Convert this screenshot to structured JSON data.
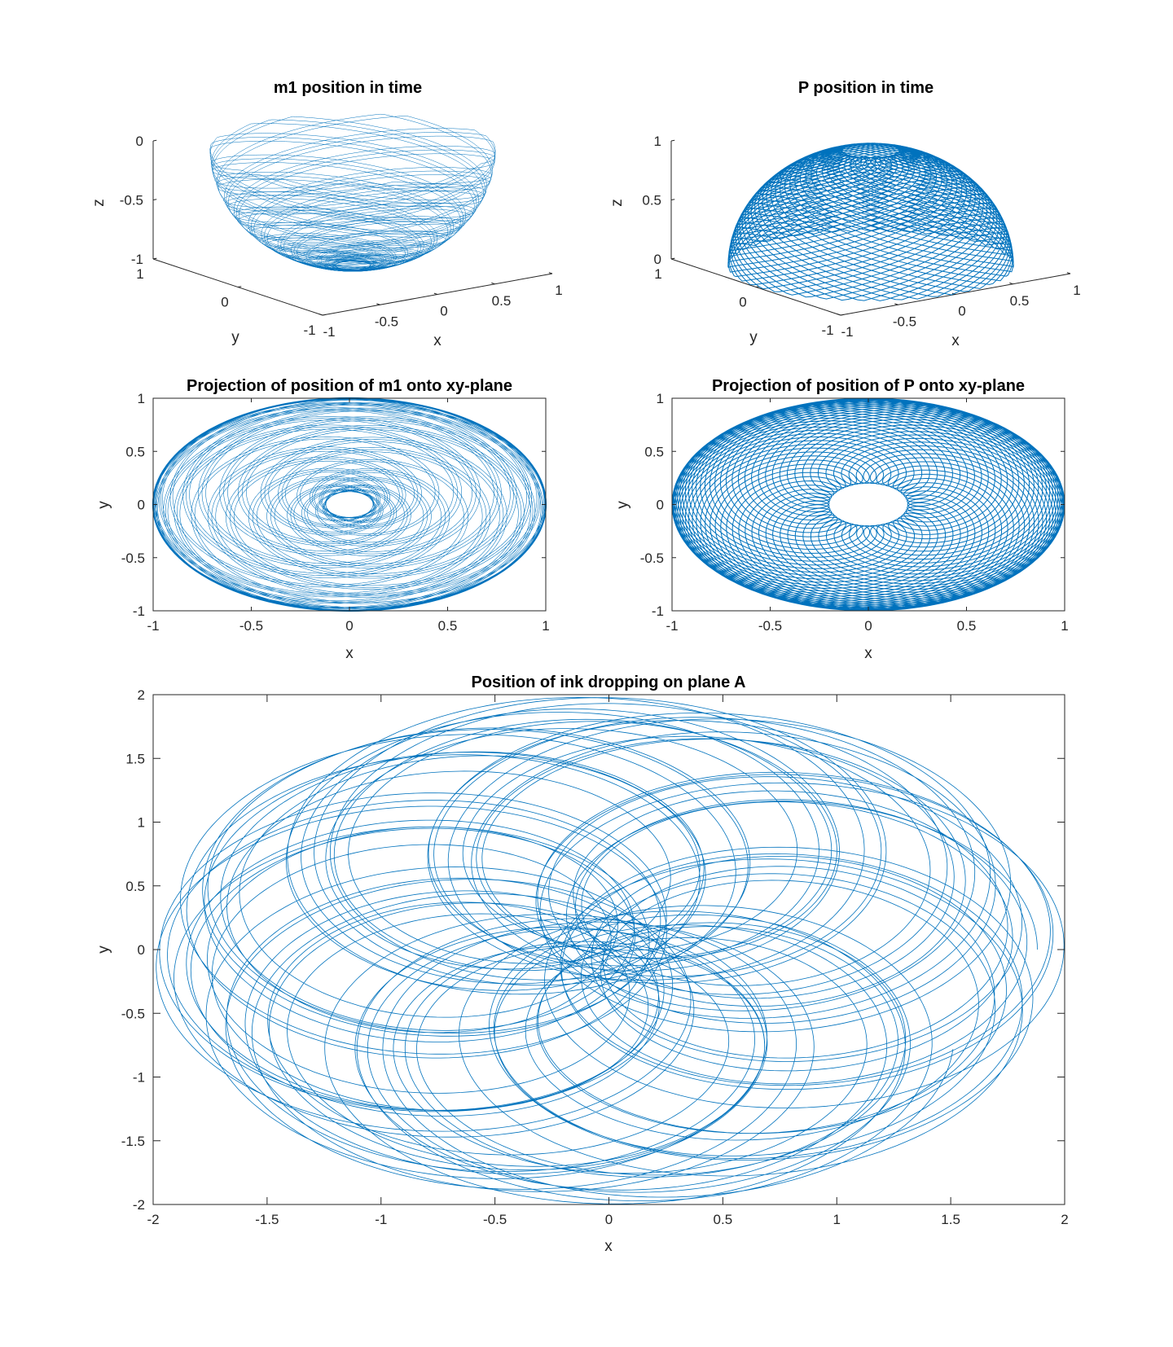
{
  "figure": {
    "line_color": "#0072BD",
    "axis_color": "#262626",
    "background": "#ffffff"
  },
  "chart_data": [
    {
      "id": "m1-3d",
      "type": "line3d",
      "title": "m1 position in time",
      "xlabel": "x",
      "ylabel": "y",
      "zlabel": "z",
      "xlim": [
        -1,
        1
      ],
      "ylim": [
        -1,
        1
      ],
      "zlim": [
        -1,
        0
      ],
      "xticks": [
        -1,
        -0.5,
        0,
        0.5,
        1
      ],
      "yticks": [
        -1,
        0,
        1
      ],
      "zticks": [
        -1,
        -0.5,
        0
      ],
      "xticklabels": [
        "-1",
        "-0.5",
        "0",
        "0.5",
        "1"
      ],
      "yticklabels": [
        "-1",
        "0",
        "1"
      ],
      "zticklabels": [
        "-1",
        "-0.5",
        "0"
      ],
      "surface": "lower hemisphere of radius 1, rho from 0.12 to 1",
      "color": "#0072BD"
    },
    {
      "id": "p-3d",
      "type": "line3d",
      "title": "P position in time",
      "xlabel": "x",
      "ylabel": "y",
      "zlabel": "z",
      "xlim": [
        -1,
        1
      ],
      "ylim": [
        -1,
        1
      ],
      "zlim": [
        0,
        1
      ],
      "xticks": [
        -1,
        -0.5,
        0,
        0.5,
        1
      ],
      "yticks": [
        -1,
        0,
        1
      ],
      "zticks": [
        0,
        0.5,
        1
      ],
      "xticklabels": [
        "-1",
        "-0.5",
        "0",
        "0.5",
        "1"
      ],
      "yticklabels": [
        "-1",
        "0",
        "1"
      ],
      "zticklabels": [
        "0",
        "0.5",
        "1"
      ],
      "surface": "upper hemisphere of radius 1, rho from 0.2 to 1",
      "color": "#0072BD"
    },
    {
      "id": "m1-xy",
      "type": "line",
      "title": "Projection of position of m1 onto xy-plane",
      "xlabel": "x",
      "ylabel": "y",
      "xlim": [
        -1,
        1
      ],
      "ylim": [
        -1,
        1
      ],
      "xticks": [
        -1,
        -0.5,
        0,
        0.5,
        1
      ],
      "yticks": [
        -1,
        -0.5,
        0,
        0.5,
        1
      ],
      "xticklabels": [
        "-1",
        "-0.5",
        "0",
        "0.5",
        "1"
      ],
      "yticklabels": [
        "-1",
        "-0.5",
        "0",
        "0.5",
        "1"
      ],
      "annulus": {
        "inner_radius": 0.12,
        "outer_radius": 1
      },
      "color": "#0072BD"
    },
    {
      "id": "p-xy",
      "type": "line",
      "title": "Projection of position of P onto xy-plane",
      "xlabel": "x",
      "ylabel": "y",
      "xlim": [
        -1,
        1
      ],
      "ylim": [
        -1,
        1
      ],
      "xticks": [
        -1,
        -0.5,
        0,
        0.5,
        1
      ],
      "yticks": [
        -1,
        -0.5,
        0,
        0.5,
        1
      ],
      "xticklabels": [
        "-1",
        "-0.5",
        "0",
        "0.5",
        "1"
      ],
      "yticklabels": [
        "-1",
        "-0.5",
        "0",
        "0.5",
        "1"
      ],
      "annulus": {
        "inner_radius": 0.2,
        "outer_radius": 1
      },
      "color": "#0072BD"
    },
    {
      "id": "ink",
      "type": "line",
      "title": "Position of ink dropping on plane A",
      "xlabel": "x",
      "ylabel": "y",
      "xlim": [
        -2,
        2
      ],
      "ylim": [
        -2,
        2
      ],
      "xticks": [
        -2,
        -1.5,
        -1,
        -0.5,
        0,
        0.5,
        1,
        1.5,
        2
      ],
      "yticks": [
        -2,
        -1.5,
        -1,
        -0.5,
        0,
        0.5,
        1,
        1.5,
        2
      ],
      "xticklabels": [
        "-2",
        "-1.5",
        "-1",
        "-0.5",
        "0",
        "0.5",
        "1",
        "1.5",
        "2"
      ],
      "yticklabels": [
        "-2",
        "-1.5",
        "-1",
        "-0.5",
        "0",
        "0.5",
        "1",
        "1.5",
        "2"
      ],
      "pattern": "rosette of overlapping loops, 8 lobes, max radius 2",
      "color": "#0072BD"
    }
  ]
}
